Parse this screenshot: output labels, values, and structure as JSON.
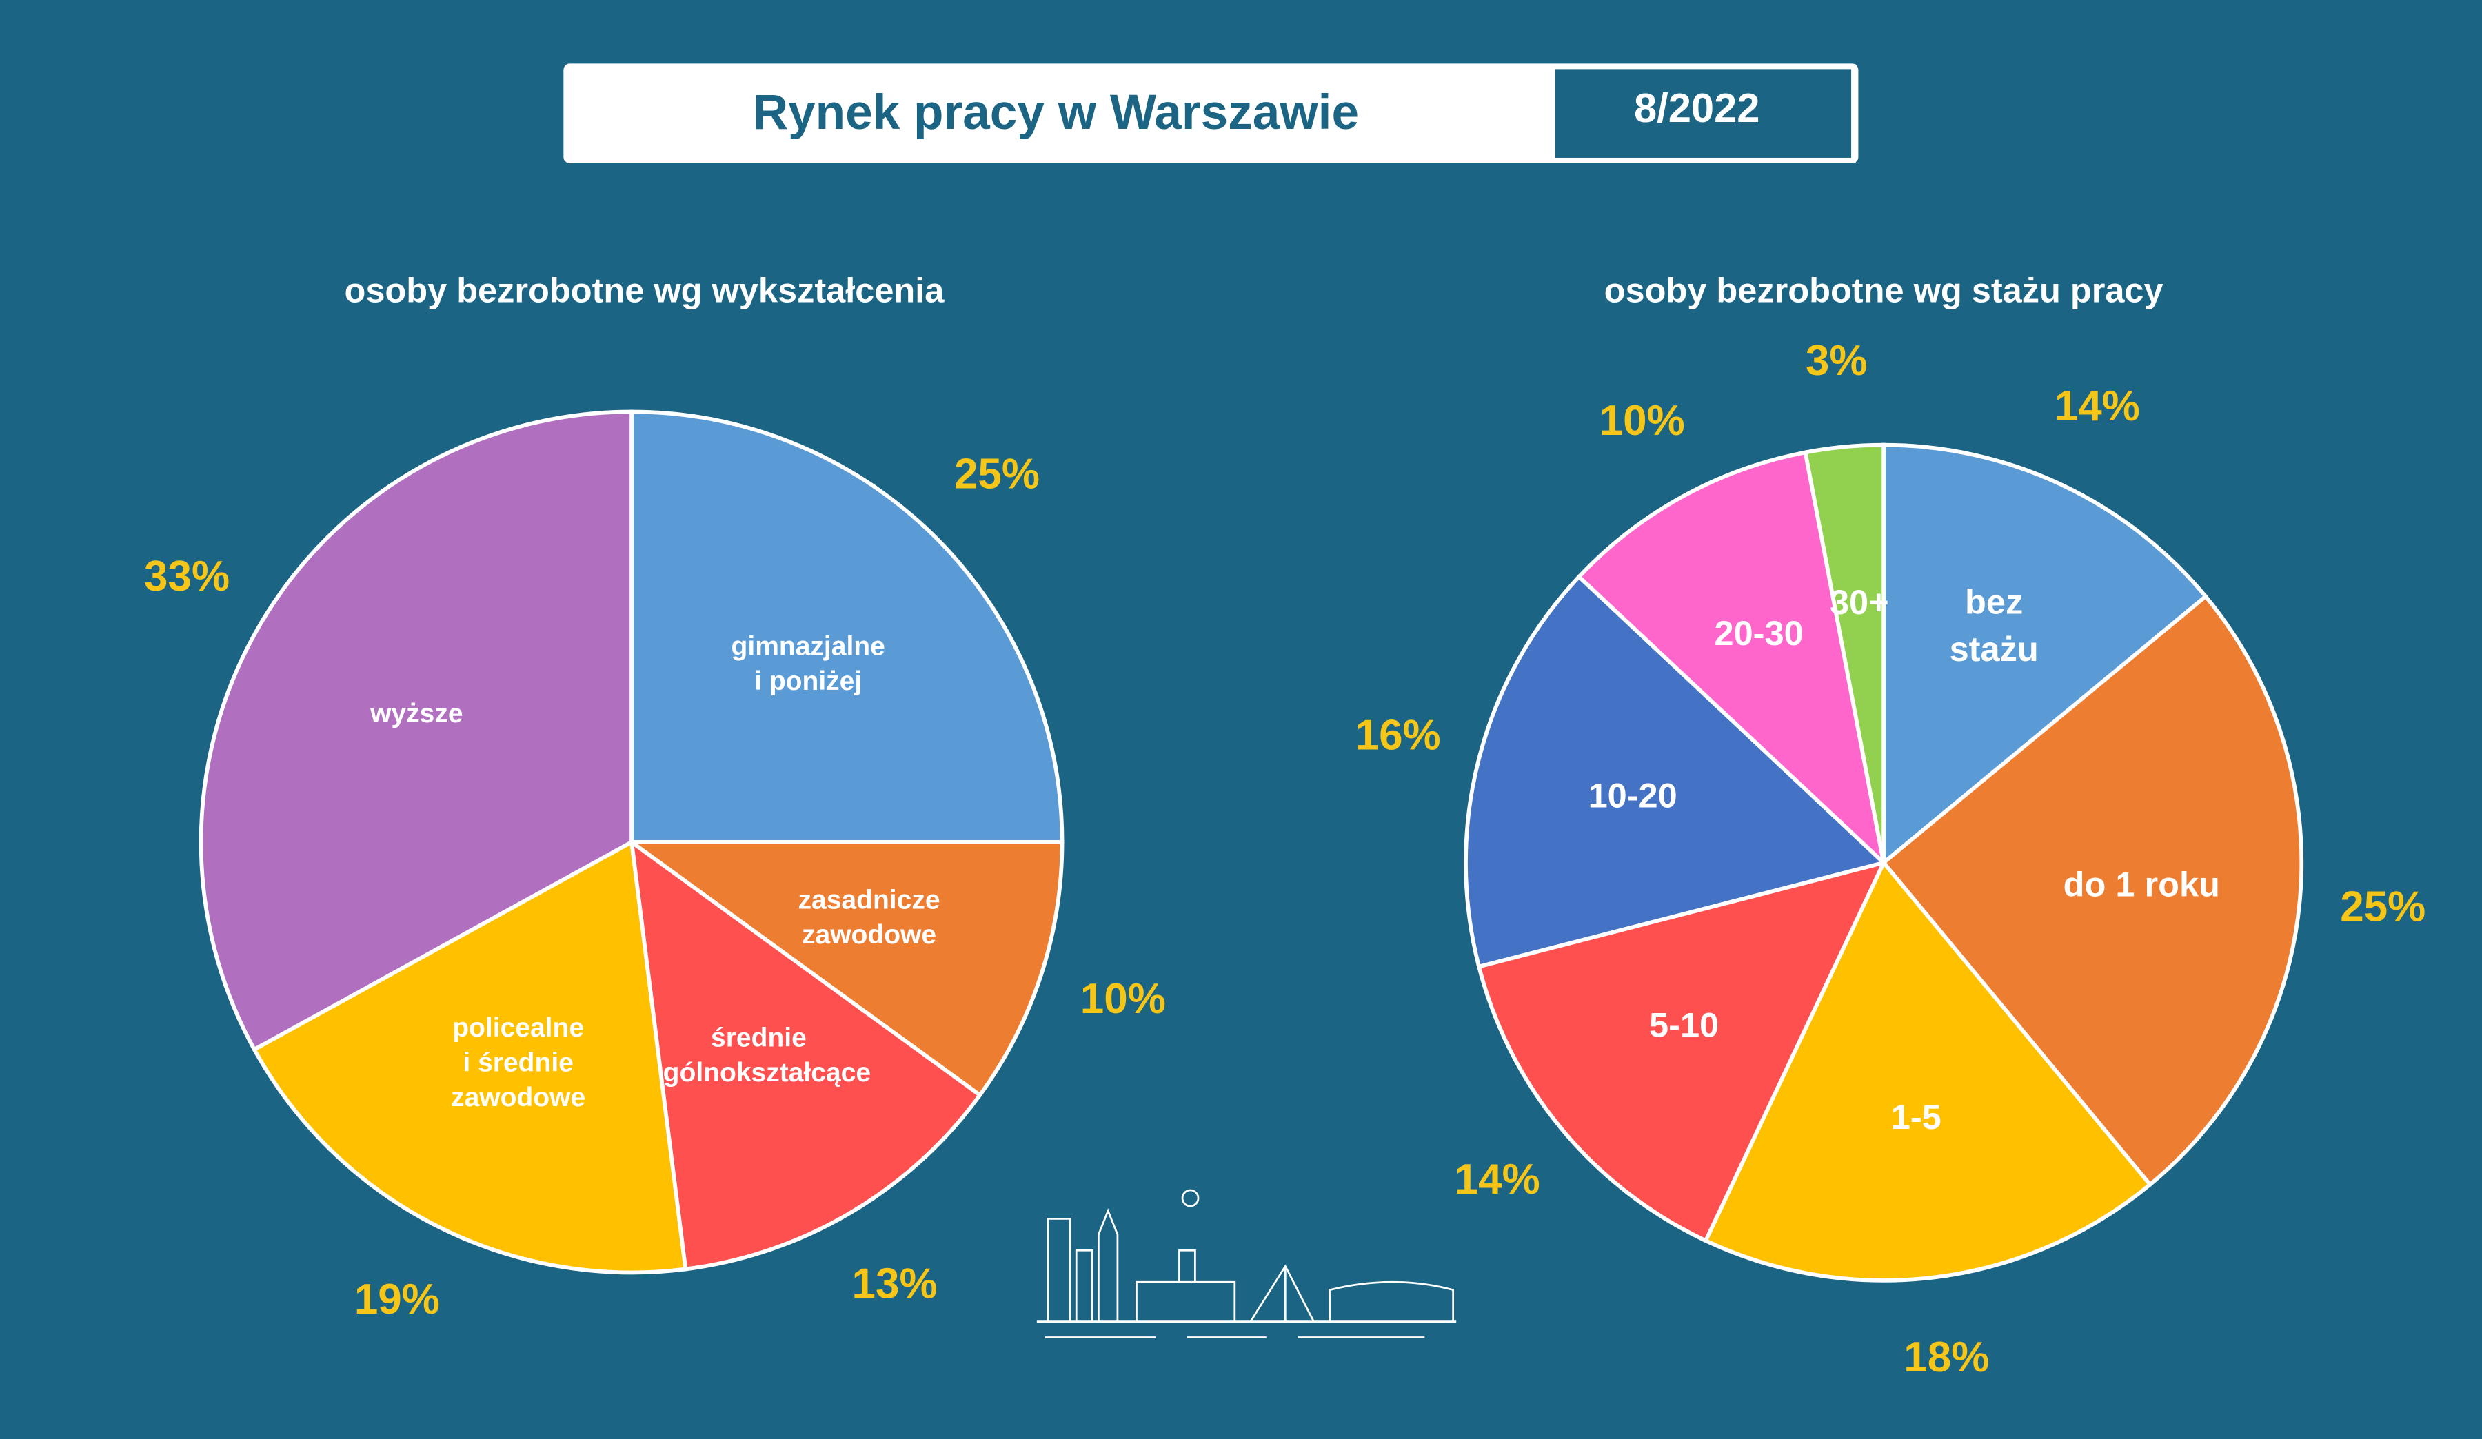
{
  "header": {
    "title": "Rynek pracy w Warszawie",
    "date": "8/2022"
  },
  "chart_data": [
    {
      "type": "pie",
      "title": "osoby bezrobotne wg wykształcenia",
      "categories": [
        "gimnazjalne\ni poniżej",
        "zasadnicze\nzawodowe",
        "średnie\nogólnokształcące",
        "policealne\ni średnie\nzawodowe",
        "wyższe"
      ],
      "values": [
        25,
        10,
        13,
        19,
        33
      ],
      "value_labels": [
        "25%",
        "10%",
        "13%",
        "19%",
        "33%"
      ],
      "colors": [
        "#5b9bd5",
        "#ed7d31",
        "#ff5050",
        "#ffc000",
        "#b070bf"
      ]
    },
    {
      "type": "pie",
      "title": "osoby bezrobotne wg stażu pracy",
      "categories": [
        "bez\nstażu",
        "do 1 roku",
        "1-5",
        "5-10",
        "10-20",
        "20-30",
        "30+"
      ],
      "values": [
        14,
        25,
        18,
        14,
        16,
        10,
        3
      ],
      "value_labels": [
        "14%",
        "25%",
        "18%",
        "14%",
        "16%",
        "10%",
        "3%"
      ],
      "colors": [
        "#5b9bd5",
        "#ed7d31",
        "#ffc000",
        "#ff5050",
        "#4472c4",
        "#ff66cc",
        "#92d050"
      ]
    }
  ]
}
